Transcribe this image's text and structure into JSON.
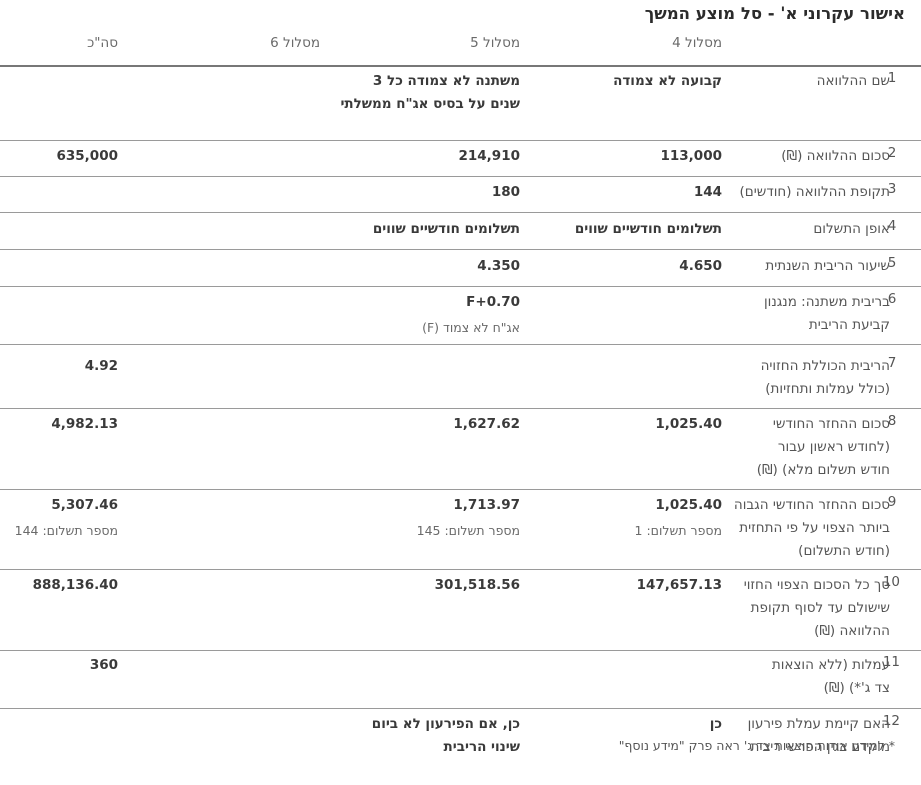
{
  "title": "אישור עקרוני א' - סל מוצע המשך",
  "columns": {
    "c4": "מסלול 4",
    "c5": "מסלול 5",
    "c6": "מסלול 6",
    "total": "סה\"כ"
  },
  "rows": [
    {
      "num": "1",
      "label": "שם ההלוואה",
      "c4": "קבועה לא צמודה",
      "c5": "משתנה לא צמודה כל 3 שנים על בסיס אג\"ח ממשלתי"
    },
    {
      "num": "2",
      "label": "סכום ההלוואה (₪)",
      "c4": "113,000",
      "c5": "214,910",
      "total": "635,000"
    },
    {
      "num": "3",
      "label": "תקופת ההלוואה (חודשים)",
      "c4": "144",
      "c5": "180"
    },
    {
      "num": "4",
      "label": "אופן התשלום",
      "c4": "תשלומים חודשיים שווים",
      "c5": "תשלומים חודשיים שווים"
    },
    {
      "num": "5",
      "label": "שיעור הריבית השנתית",
      "c4": "4.650",
      "c5": "4.350"
    },
    {
      "num": "6",
      "label": "בריבית משתנה: מנגנון קביעת הריבית",
      "c5": "F+0.70",
      "c5_sub": "אג\"ח לא צמוד (F)"
    },
    {
      "num": "7",
      "label": "הריבית הכוללת החזויה (כולל עמלות ותחזיות)",
      "total": "4.92"
    },
    {
      "num": "8",
      "label": "סכום ההחזר החודשי (לחודש ראשון עבור חודש תשלום מלא) (₪)",
      "c4": "1,025.40",
      "c5": "1,627.62",
      "total": "4,982.13"
    },
    {
      "num": "9",
      "label": "סכום ההחזר החודשי הגבוה ביותר הצפוי על פי התחזית (חודש התשלום)",
      "c4": "1,025.40",
      "c4_sub": "מספר תשלום: 1",
      "c5": "1,713.97",
      "c5_sub": "מספר תשלום: 145",
      "total": "5,307.46",
      "total_sub": "מספר תשלום: 144"
    },
    {
      "num": "10",
      "label": "סך כל הסכום הצפוי החזוי שישולם עד לסוף תקופת ההלוואה (₪)",
      "c4": "147,657.13",
      "c5": "301,518.56",
      "total": "888,136.40"
    },
    {
      "num": "11",
      "label": "עמלות (ללא הוצאות צד ג'*) (₪)",
      "total": "360"
    },
    {
      "num": "12",
      "label": "האם קיימת עמלת פירעון מוקדם בגין הפרשי ריבית",
      "c4": "כן",
      "c5": "כן, אם הפירעון לא ביום שינוי הריבית"
    }
  ],
  "footnote": "* למידע אודות הוצאות צד ג' ראה פרק \"מידע נוסף\""
}
